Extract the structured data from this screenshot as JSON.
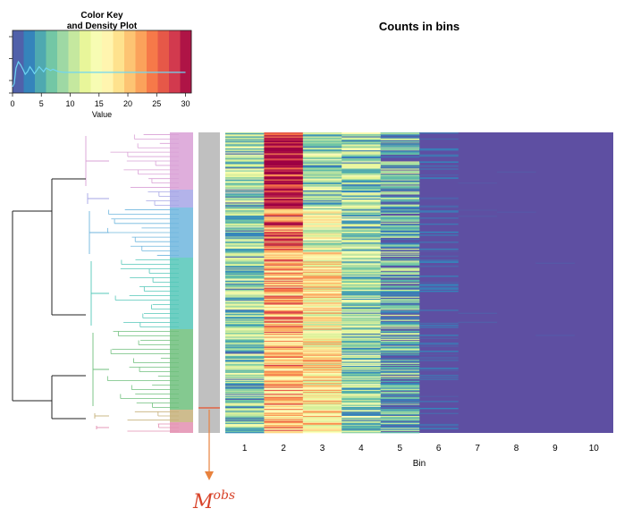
{
  "chart_data": [
    {
      "type": "heatmap",
      "title": "Counts in bins",
      "xlabel": "Bin",
      "x_tick_labels": [
        "1",
        "2",
        "3",
        "4",
        "5",
        "6",
        "7",
        "8",
        "9",
        "10"
      ],
      "value_range": [
        0,
        31
      ],
      "row_count": 300,
      "rows_description_values": "per-bin count profile (approximate mean per bin)",
      "bin_mean_values": [
        8,
        25,
        15,
        9,
        5,
        1.2,
        0.3,
        0,
        0,
        0
      ],
      "row_dendrogram": true,
      "row_cluster_colors": [
        "#d9a0d6",
        "#a6a6e6",
        "#6fb6de",
        "#55c7b9",
        "#6fbf7c",
        "#c6b07a",
        "#e38fb0"
      ],
      "highlighted_row_label": "M",
      "highlighted_row_label_superscript": "obs"
    },
    {
      "type": "line",
      "title": "Color Key\nand Density Plot",
      "title_lines": [
        "Color Key",
        "and Density Plot"
      ],
      "xlabel": "Value",
      "ylabel": "",
      "x_tick_labels": [
        "0",
        "5",
        "10",
        "15",
        "20",
        "25",
        "30"
      ],
      "xlim": [
        0,
        31
      ],
      "palette": [
        "#5e4fa2",
        "#3288bd",
        "#66c2a5",
        "#abdda4",
        "#e6f598",
        "#ffffbf",
        "#fee08b",
        "#fdae61",
        "#f46d43",
        "#d53e4f",
        "#9e0142"
      ],
      "density_x": [
        0,
        0.3,
        0.6,
        1,
        1.4,
        1.8,
        2.2,
        2.6,
        3,
        3.4,
        3.8,
        4.2,
        4.6,
        5,
        5.4,
        5.8,
        6.2,
        6.6,
        7,
        7.5,
        8,
        9,
        10,
        12,
        15,
        20,
        25,
        30
      ],
      "density_y": [
        0.9,
        0.85,
        0.6,
        0.5,
        0.55,
        0.62,
        0.7,
        0.66,
        0.58,
        0.63,
        0.69,
        0.64,
        0.58,
        0.62,
        0.66,
        0.6,
        0.62,
        0.64,
        0.62,
        0.64,
        0.66,
        0.67,
        0.67,
        0.67,
        0.67,
        0.67,
        0.67,
        0.67
      ]
    }
  ]
}
